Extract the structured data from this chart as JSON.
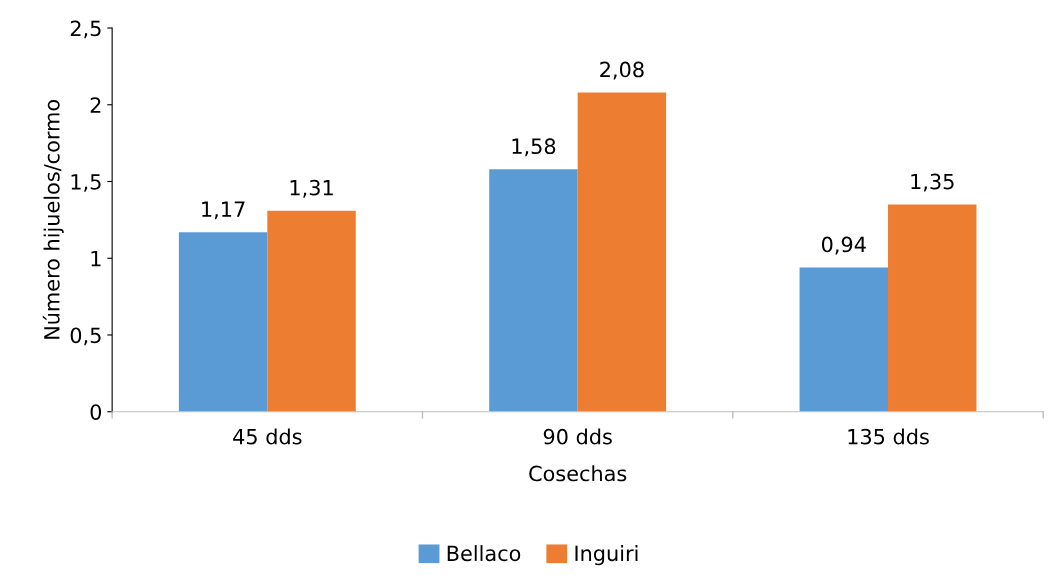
{
  "chart_data": {
    "type": "bar",
    "xlabel": "Cosechas",
    "ylabel": "Número hijuelos/cormo",
    "categories": [
      "45 dds",
      "90 dds",
      "135 dds"
    ],
    "series": [
      {
        "name": "Bellaco",
        "color": "#5b9bd5",
        "values": [
          1.17,
          1.58,
          0.94
        ],
        "value_labels": [
          "1,17",
          "1,58",
          "0,94"
        ]
      },
      {
        "name": "Inguiri",
        "color": "#ed7d31",
        "values": [
          1.31,
          2.08,
          1.35
        ],
        "value_labels": [
          "1,31",
          "2,08",
          "1,35"
        ]
      }
    ],
    "ylim": [
      0,
      2.5
    ],
    "yticks": [
      0,
      {
        "value": 0.5,
        "label": "0,5"
      },
      1,
      {
        "value": 1.5,
        "label": "1,5"
      },
      2,
      {
        "value": 2.5,
        "label": "2,5"
      }
    ],
    "grid": false,
    "legend": "bottom"
  }
}
